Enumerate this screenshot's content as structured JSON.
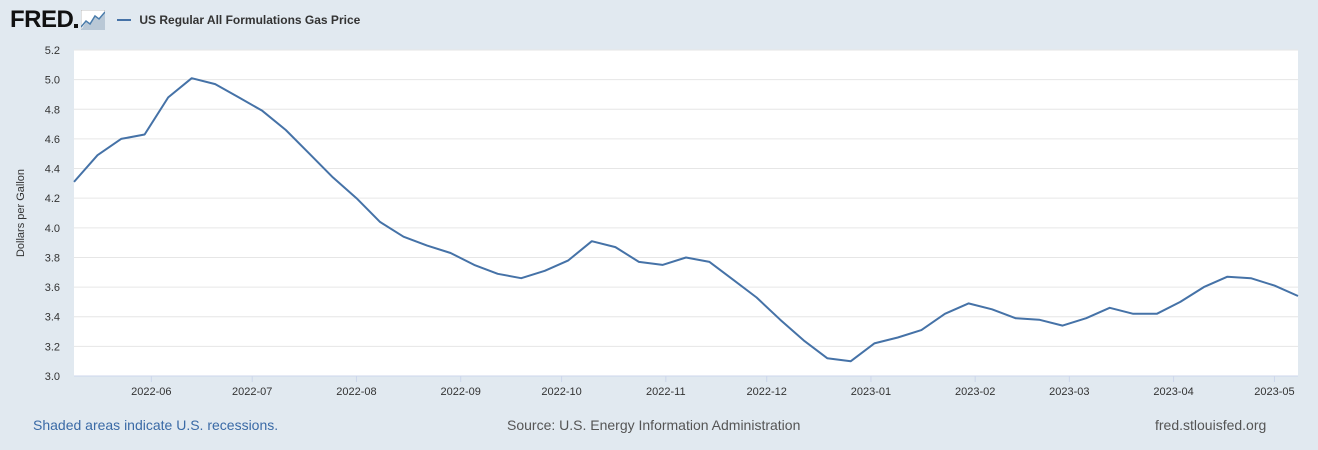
{
  "header": {
    "logo": "FRED",
    "legend_label": "US Regular All Formulations Gas Price"
  },
  "colors": {
    "series": "#4572a7",
    "background": "#e1e9f0",
    "plot_bg": "#ffffff",
    "grid": "#e6e6e6"
  },
  "icons": {
    "logo_graph": "fred-chart-icon"
  },
  "footer": {
    "recessions_link": "Shaded areas indicate U.S. recessions.",
    "source": "Source: U.S. Energy Information Administration",
    "site": "fred.stlouisfed.org"
  },
  "chart_data": {
    "type": "line",
    "title": "",
    "xlabel": "",
    "ylabel": "Dollars per Gallon",
    "ylim": [
      3.0,
      5.2
    ],
    "yticks": [
      "3.0",
      "3.2",
      "3.4",
      "3.6",
      "3.8",
      "4.0",
      "4.2",
      "4.4",
      "4.6",
      "4.8",
      "5.0",
      "5.2"
    ],
    "xlim": [
      "2022-05-09",
      "2023-05-08"
    ],
    "xticks": [
      "2022-06",
      "2022-07",
      "2022-08",
      "2022-09",
      "2022-10",
      "2022-11",
      "2022-12",
      "2023-01",
      "2023-02",
      "2023-03",
      "2023-04",
      "2023-05"
    ],
    "grid": true,
    "legend": "top-left",
    "series": [
      {
        "name": "US Regular All Formulations Gas Price",
        "x": [
          "2022-05-09",
          "2022-05-16",
          "2022-05-23",
          "2022-05-30",
          "2022-06-06",
          "2022-06-13",
          "2022-06-20",
          "2022-06-27",
          "2022-07-04",
          "2022-07-11",
          "2022-07-18",
          "2022-07-25",
          "2022-08-01",
          "2022-08-08",
          "2022-08-15",
          "2022-08-22",
          "2022-08-29",
          "2022-09-05",
          "2022-09-12",
          "2022-09-19",
          "2022-09-26",
          "2022-10-03",
          "2022-10-10",
          "2022-10-17",
          "2022-10-24",
          "2022-10-31",
          "2022-11-07",
          "2022-11-14",
          "2022-11-21",
          "2022-11-28",
          "2022-12-05",
          "2022-12-12",
          "2022-12-19",
          "2022-12-26",
          "2023-01-02",
          "2023-01-09",
          "2023-01-16",
          "2023-01-23",
          "2023-01-30",
          "2023-02-06",
          "2023-02-13",
          "2023-02-20",
          "2023-02-27",
          "2023-03-06",
          "2023-03-13",
          "2023-03-20",
          "2023-03-27",
          "2023-04-03",
          "2023-04-10",
          "2023-04-17",
          "2023-04-24",
          "2023-05-01",
          "2023-05-08"
        ],
        "values": [
          4.31,
          4.49,
          4.6,
          4.63,
          4.88,
          5.01,
          4.97,
          4.88,
          4.79,
          4.66,
          4.5,
          4.34,
          4.2,
          4.04,
          3.94,
          3.88,
          3.83,
          3.75,
          3.69,
          3.66,
          3.71,
          3.78,
          3.91,
          3.87,
          3.77,
          3.75,
          3.8,
          3.77,
          3.65,
          3.53,
          3.38,
          3.24,
          3.12,
          3.1,
          3.22,
          3.26,
          3.31,
          3.42,
          3.49,
          3.45,
          3.39,
          3.38,
          3.34,
          3.39,
          3.46,
          3.42,
          3.42,
          3.5,
          3.6,
          3.67,
          3.66,
          3.61,
          3.54
        ]
      }
    ]
  }
}
